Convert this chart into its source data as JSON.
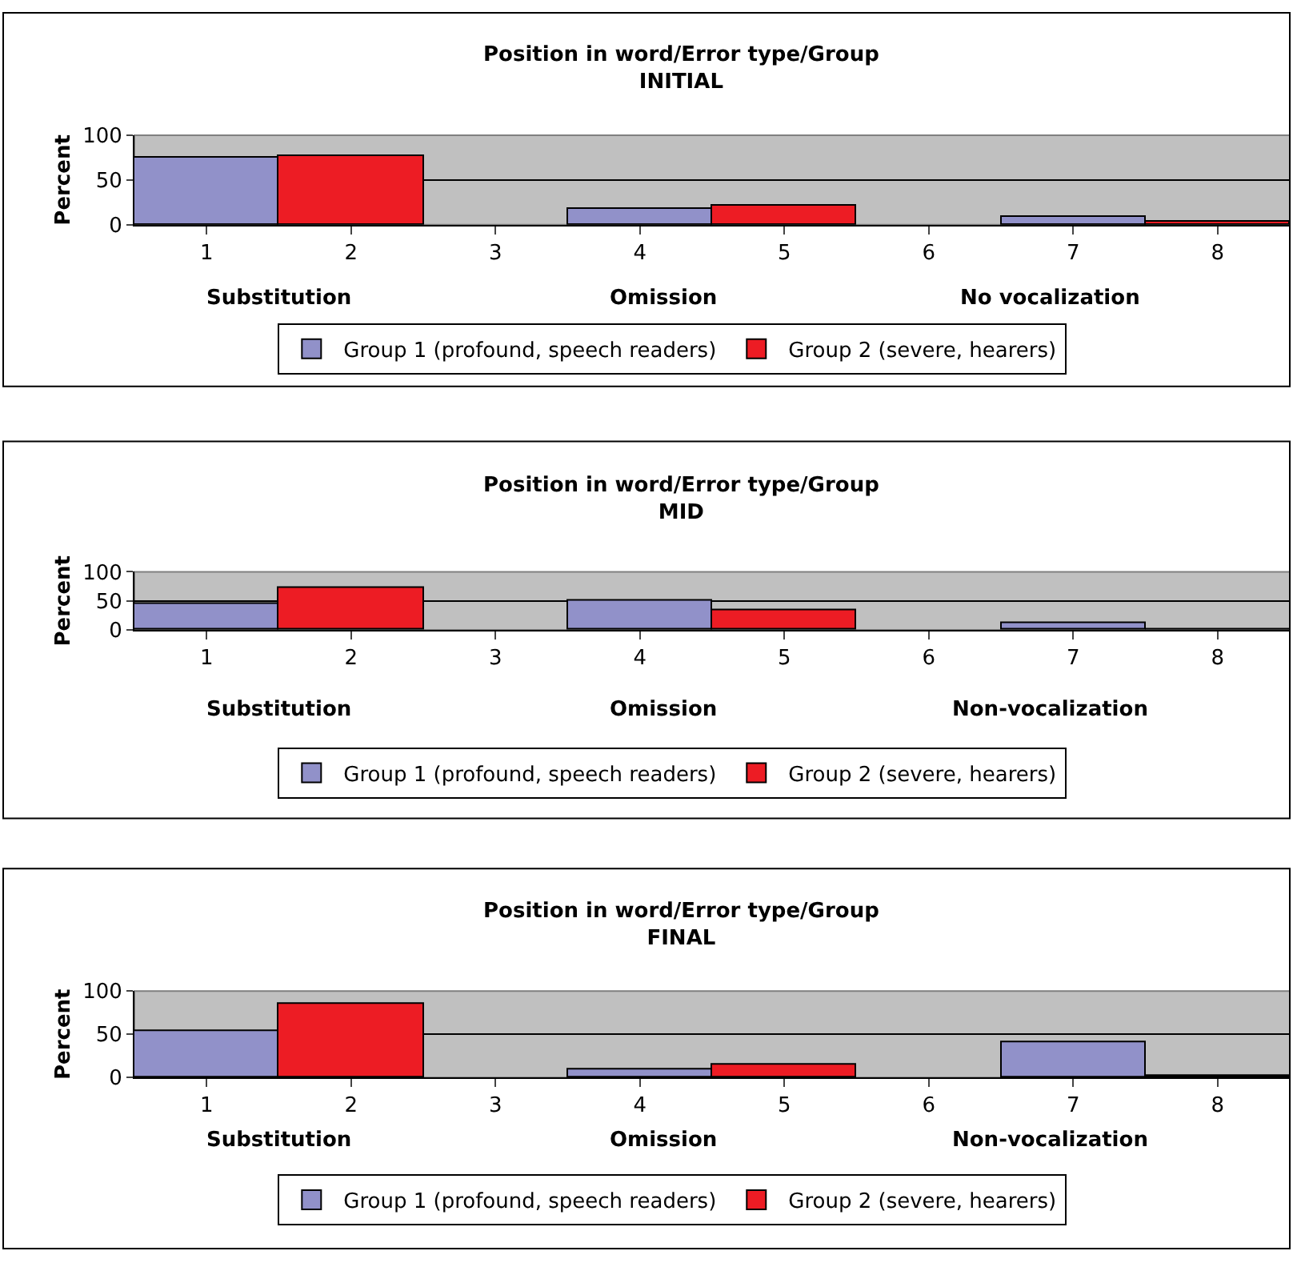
{
  "chart_data": [
    {
      "type": "bar",
      "title": "Position in word/Error type/Group\nINITIAL",
      "ylabel": "Percent",
      "categories": [
        "1",
        "2",
        "3",
        "4",
        "5",
        "6",
        "7",
        "8"
      ],
      "series": [
        {
          "name": "Group 1 (profound, speech readers)",
          "color": "#9191c9",
          "values": [
            75,
            null,
            null,
            18,
            null,
            null,
            9,
            null
          ]
        },
        {
          "name": "Group 2 (severe, hearers)",
          "color": "#ed1c24",
          "values": [
            null,
            77,
            null,
            null,
            22,
            null,
            null,
            4
          ]
        }
      ],
      "annotations": [
        "Substitution",
        "Omission",
        "No vocalization"
      ],
      "ylim": [
        0,
        100
      ],
      "yticks": [
        0,
        50,
        100
      ],
      "grid": "y",
      "legend": "bottom"
    },
    {
      "type": "bar",
      "title": "Position in word/Error type/Group\nMID",
      "ylabel": "Percent",
      "categories": [
        "1",
        "2",
        "3",
        "4",
        "5",
        "6",
        "7",
        "8"
      ],
      "series": [
        {
          "name": "Group 1 (profound, speech readers)",
          "color": "#9191c9",
          "values": [
            44,
            null,
            null,
            50,
            null,
            null,
            12,
            null
          ]
        },
        {
          "name": "Group 2 (severe, hearers)",
          "color": "#ed1c24",
          "values": [
            null,
            72,
            null,
            null,
            33,
            null,
            null,
            2
          ]
        }
      ],
      "annotations": [
        "Substitution",
        "Omission",
        "Non-vocalization"
      ],
      "ylim": [
        0,
        100
      ],
      "yticks": [
        0,
        50,
        100
      ],
      "grid": "y",
      "legend": "bottom"
    },
    {
      "type": "bar",
      "title": "Position in word/Error type/Group\nFINAL",
      "ylabel": "Percent",
      "categories": [
        "1",
        "2",
        "3",
        "4",
        "5",
        "6",
        "7",
        "8"
      ],
      "series": [
        {
          "name": "Group 1 (profound, speech readers)",
          "color": "#9191c9",
          "values": [
            54,
            null,
            null,
            10,
            null,
            null,
            40,
            null
          ]
        },
        {
          "name": "Group 2 (severe, hearers)",
          "color": "#ed1c24",
          "values": [
            null,
            86,
            null,
            null,
            14,
            null,
            null,
            2
          ]
        }
      ],
      "annotations": [
        "Substitution",
        "Omission",
        "Non-vocalization"
      ],
      "ylim": [
        0,
        100
      ],
      "yticks": [
        0,
        50,
        100
      ],
      "grid": "y",
      "legend": "bottom"
    }
  ]
}
